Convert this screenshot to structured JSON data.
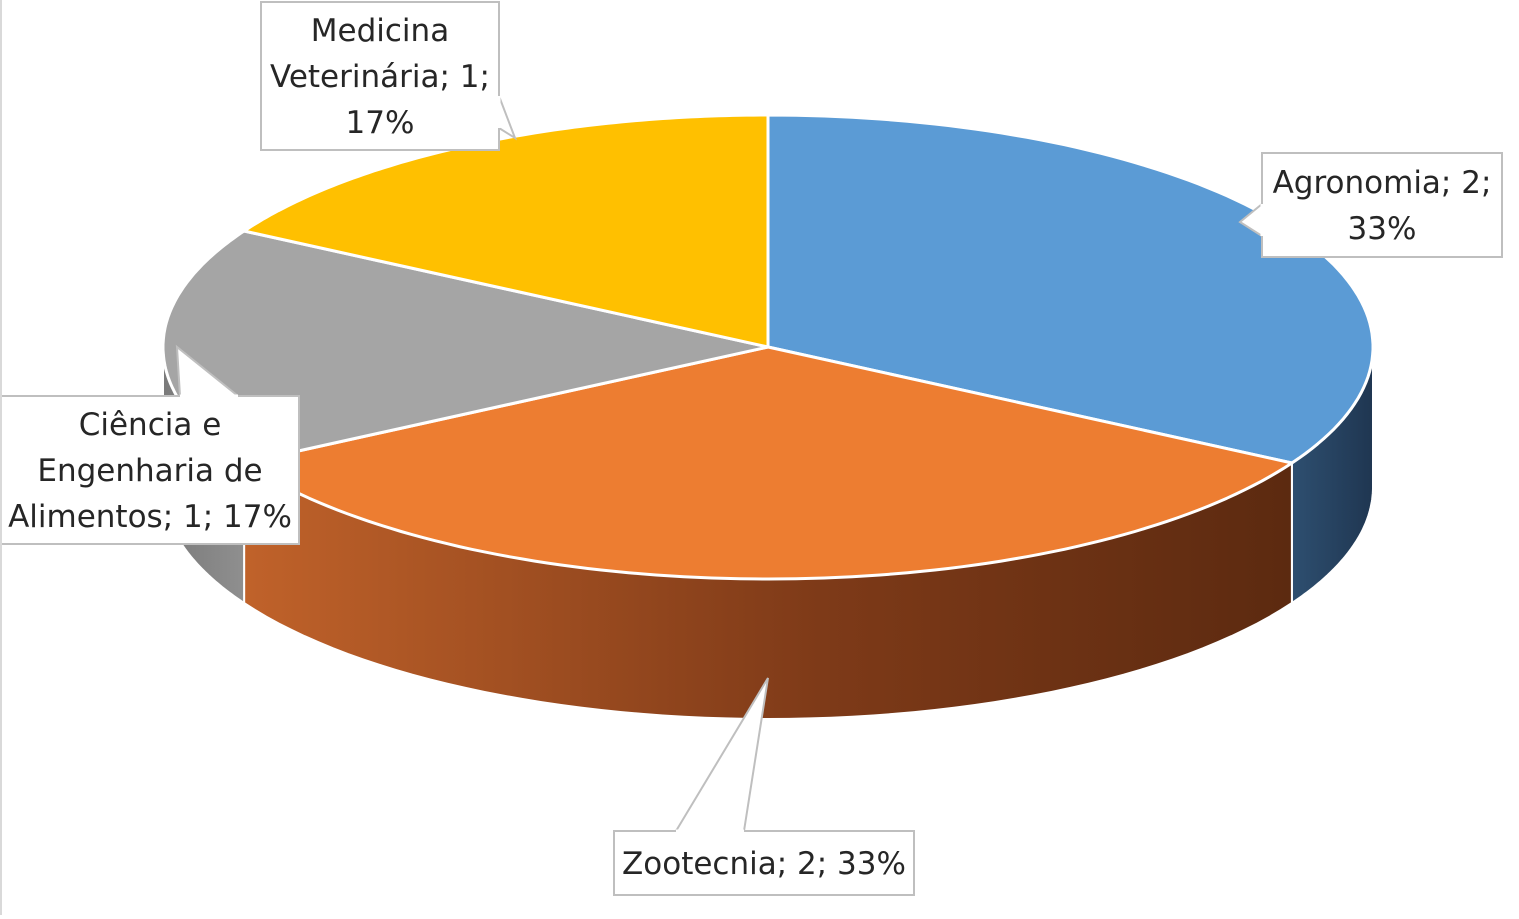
{
  "chart_data": {
    "type": "pie",
    "style": "3d",
    "categories": [
      "Agronomia",
      "Zootecnia",
      "Ciência e Engenharia de Alimentos",
      "Medicina Veterinária"
    ],
    "values": [
      2,
      2,
      1,
      1
    ],
    "percentages": [
      33,
      33,
      17,
      17
    ],
    "colors": [
      "#5B9BD5",
      "#ED7D31",
      "#A5A5A5",
      "#FFC000"
    ],
    "labels": [
      {
        "lines": [
          "Agronomia; 2;",
          "33%"
        ]
      },
      {
        "lines": [
          "Zootecnia; 2; 33%"
        ]
      },
      {
        "lines": [
          "Ciência e",
          "Engenharia de",
          "Alimentos; 1; 17%"
        ]
      },
      {
        "lines": [
          "Medicina",
          "Veterinária; 1;",
          "17%"
        ]
      }
    ],
    "legend": "none",
    "title": ""
  }
}
